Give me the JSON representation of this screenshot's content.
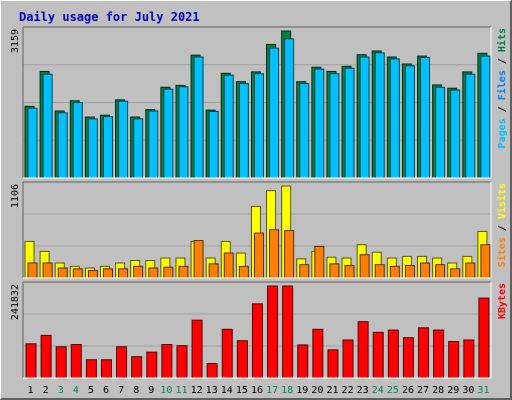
{
  "chart_data": [
    {
      "type": "bar",
      "title": "Daily usage for July 2021",
      "categories": [
        "1",
        "2",
        "3",
        "4",
        "5",
        "6",
        "7",
        "8",
        "9",
        "10",
        "11",
        "12",
        "13",
        "14",
        "15",
        "16",
        "17",
        "18",
        "19",
        "20",
        "21",
        "22",
        "23",
        "24",
        "25",
        "26",
        "27",
        "28",
        "29",
        "30",
        "31"
      ],
      "weekend_days": [
        "3",
        "4",
        "10",
        "11",
        "17",
        "18",
        "24",
        "25",
        "31"
      ],
      "ylabel_max": "3159",
      "ylim": [
        0,
        3159
      ],
      "legend": [
        "Pages",
        "Files",
        "Hits"
      ],
      "legend_colors": {
        "Pages": "#00C0FF",
        "Files": "#0080FF",
        "Hits": "#008040"
      },
      "series": [
        {
          "name": "Hits",
          "color": "#008040",
          "values": [
            1540,
            2290,
            1440,
            1660,
            1310,
            1350,
            1680,
            1310,
            1470,
            1950,
            1990,
            2640,
            1460,
            2250,
            2070,
            2280,
            2870,
            3159,
            2070,
            2380,
            2290,
            2400,
            2650,
            2730,
            2600,
            2450,
            2620,
            2000,
            1930,
            2280,
            2680
          ]
        },
        {
          "name": "Pages",
          "color": "#00C0FF",
          "values": [
            1500,
            2230,
            1400,
            1620,
            1270,
            1320,
            1650,
            1270,
            1440,
            1910,
            1960,
            2600,
            1430,
            2210,
            2030,
            2240,
            2790,
            2990,
            2030,
            2340,
            2240,
            2360,
            2600,
            2690,
            2560,
            2410,
            2590,
            1950,
            1890,
            2230,
            2620
          ]
        }
      ]
    },
    {
      "type": "bar",
      "categories": [
        "1",
        "2",
        "3",
        "4",
        "5",
        "6",
        "7",
        "8",
        "9",
        "10",
        "11",
        "12",
        "13",
        "14",
        "15",
        "16",
        "17",
        "18",
        "19",
        "20",
        "21",
        "22",
        "23",
        "24",
        "25",
        "26",
        "27",
        "28",
        "29",
        "30",
        "31"
      ],
      "ylabel_max": "1106",
      "ylim": [
        0,
        1106
      ],
      "legend": [
        "Sites",
        "Visits"
      ],
      "legend_colors": {
        "Sites": "#FF8000",
        "Visits": "#FFFF00"
      },
      "series": [
        {
          "name": "Visits",
          "color": "#FFFF00",
          "values": [
            440,
            320,
            180,
            140,
            120,
            140,
            180,
            210,
            210,
            240,
            240,
            440,
            240,
            440,
            300,
            860,
            1050,
            1106,
            230,
            320,
            250,
            240,
            400,
            310,
            240,
            260,
            260,
            240,
            180,
            260,
            560
          ]
        },
        {
          "name": "Sites",
          "color": "#FF8000",
          "values": [
            180,
            180,
            120,
            110,
            90,
            110,
            110,
            140,
            120,
            130,
            140,
            450,
            170,
            300,
            140,
            540,
            580,
            570,
            160,
            380,
            170,
            150,
            280,
            160,
            140,
            150,
            180,
            160,
            110,
            180,
            400
          ]
        }
      ]
    },
    {
      "type": "bar",
      "categories": [
        "1",
        "2",
        "3",
        "4",
        "5",
        "6",
        "7",
        "8",
        "9",
        "10",
        "11",
        "12",
        "13",
        "14",
        "15",
        "16",
        "17",
        "18",
        "19",
        "20",
        "21",
        "22",
        "23",
        "24",
        "25",
        "26",
        "27",
        "28",
        "29",
        "30",
        "31"
      ],
      "ylabel_max": "241832",
      "ylim": [
        0,
        241832
      ],
      "legend": [
        "KBytes"
      ],
      "legend_colors": {
        "KBytes": "#FF0000"
      },
      "series": [
        {
          "name": "KBytes",
          "color": "#FF0000",
          "values": [
            90000,
            112000,
            82000,
            88000,
            48000,
            48000,
            82000,
            56000,
            68000,
            88000,
            85000,
            152000,
            38000,
            128000,
            98000,
            195000,
            241832,
            241832,
            87000,
            128000,
            74000,
            100000,
            148000,
            120000,
            126000,
            106000,
            132000,
            126000,
            96000,
            100000,
            210000
          ]
        }
      ]
    }
  ]
}
